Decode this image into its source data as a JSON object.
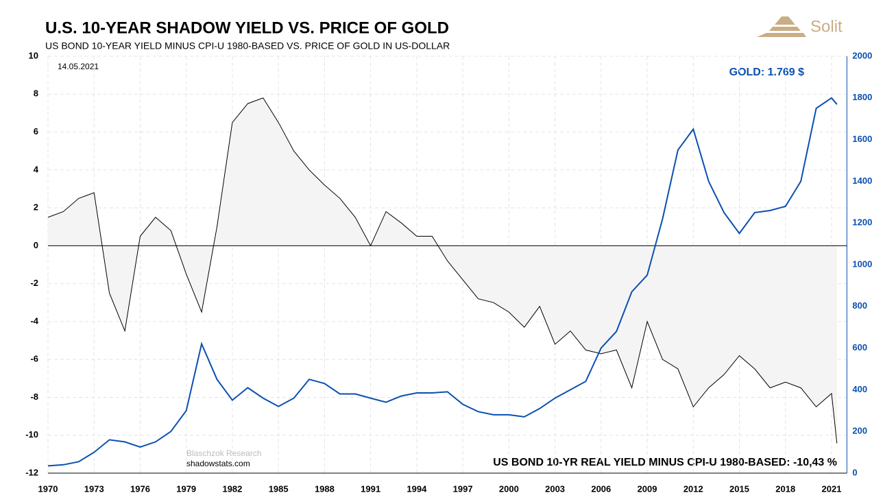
{
  "chart_data": {
    "type": "line",
    "title": "U.S. 10-YEAR SHADOW YIELD VS. PRICE OF GOLD",
    "subtitle": "US BOND 10-YEAR YIELD MINUS CPI-U 1980-BASED VS. PRICE OF GOLD IN US-DOLLAR",
    "annotations": [
      "14.05.2021",
      "GOLD: 1.769 $",
      "US BOND 10-YR REAL YIELD MINUS CPI-U 1980-BASED: -10,43 %",
      "Blaschzok Research",
      "shadowstats.com"
    ],
    "logo": "Solit",
    "x": [
      1970,
      1971,
      1972,
      1973,
      1974,
      1975,
      1976,
      1977,
      1978,
      1979,
      1980,
      1981,
      1982,
      1983,
      1984,
      1985,
      1986,
      1987,
      1988,
      1989,
      1990,
      1991,
      1992,
      1993,
      1994,
      1995,
      1996,
      1997,
      1998,
      1999,
      2000,
      2001,
      2002,
      2003,
      2004,
      2005,
      2006,
      2007,
      2008,
      2009,
      2010,
      2011,
      2012,
      2013,
      2014,
      2015,
      2016,
      2017,
      2018,
      2019,
      2020,
      2021,
      2021.35
    ],
    "series": [
      {
        "name": "US BOND 10-YR REAL YIELD MINUS CPI-U 1980-BASED",
        "color": "#000000",
        "axis": "y",
        "values": [
          1.5,
          1.8,
          2.5,
          2.8,
          -2.5,
          -4.5,
          0.5,
          1.5,
          0.8,
          -1.5,
          -3.5,
          1,
          6.5,
          7.5,
          7.8,
          6.5,
          5,
          4,
          3.2,
          2.5,
          1.5,
          0,
          1.8,
          1.2,
          0.5,
          0.5,
          -0.8,
          -1.8,
          -2.8,
          -3,
          -3.5,
          -4.3,
          -3.2,
          -5.2,
          -4.5,
          -5.5,
          -5.7,
          -5.5,
          -7.5,
          -4,
          -6,
          -6.5,
          -8.5,
          -7.5,
          -6.8,
          -5.8,
          -6.5,
          -7.5,
          -7.2,
          -7.5,
          -8.5,
          -7.8,
          -10.43
        ]
      },
      {
        "name": "GOLD",
        "color": "#0a4fb0",
        "axis": "y2",
        "values": [
          35,
          40,
          55,
          100,
          160,
          150,
          125,
          150,
          200,
          300,
          620,
          450,
          350,
          410,
          360,
          320,
          360,
          450,
          430,
          380,
          380,
          360,
          340,
          370,
          385,
          385,
          390,
          330,
          295,
          280,
          280,
          270,
          310,
          360,
          400,
          440,
          600,
          680,
          870,
          950,
          1220,
          1550,
          1650,
          1400,
          1250,
          1150,
          1250,
          1260,
          1280,
          1400,
          1750,
          1800,
          1769
        ]
      }
    ],
    "xlim": [
      1970,
      2022
    ],
    "xticks": [
      1970,
      1973,
      1976,
      1979,
      1982,
      1985,
      1988,
      1991,
      1994,
      1997,
      2000,
      2003,
      2006,
      2009,
      2012,
      2015,
      2018,
      2021
    ],
    "ylim": [
      -12,
      10
    ],
    "yticks": [
      -12,
      -10,
      -8,
      -6,
      -4,
      -2,
      0,
      2,
      4,
      6,
      8,
      10
    ],
    "y2lim": [
      0,
      2000
    ],
    "y2ticks": [
      0,
      200,
      400,
      600,
      800,
      1000,
      1200,
      1400,
      1600,
      1800,
      2000
    ],
    "grid": true
  }
}
